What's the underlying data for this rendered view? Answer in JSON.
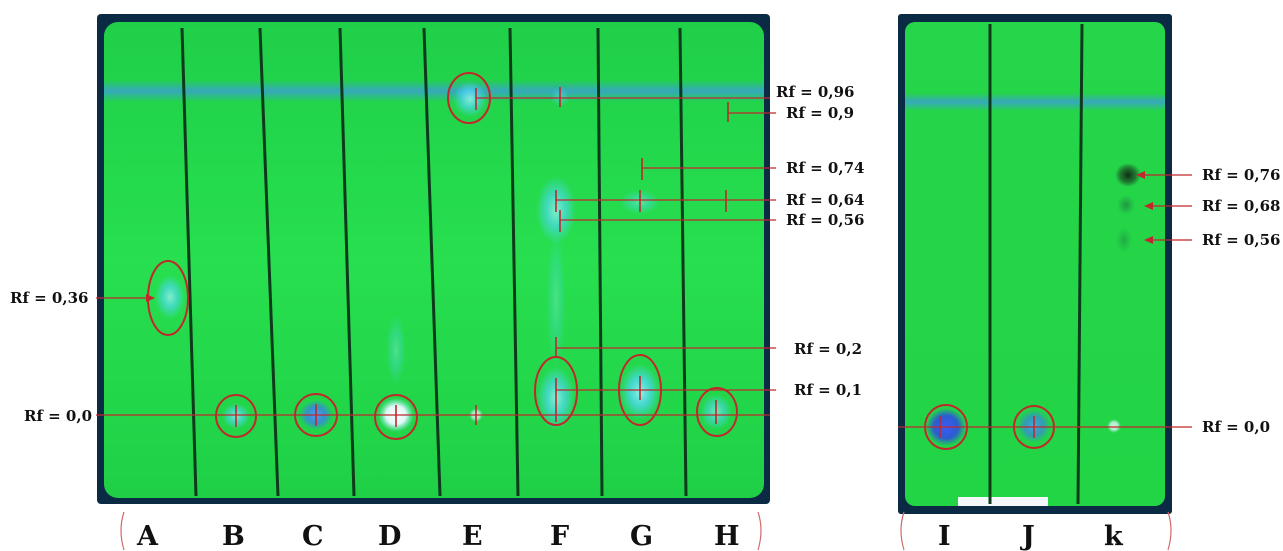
{
  "colors": {
    "plate_green": "#22d84a",
    "plate_edge": "#0b2a44",
    "divider": "#0e3a1c",
    "solvent_band": "#3aa0d0",
    "marker_red": "#c0282c",
    "fluorescent_spot": "#50d8ff",
    "quenched_spot": "#1a3a20"
  },
  "lanes": [
    "A",
    "B",
    "C",
    "D",
    "E",
    "F",
    "G",
    "H",
    "I",
    "J",
    "k"
  ],
  "rf_labels": {
    "plate1_left": [
      "Rf = 0,36",
      "Rf = 0,0"
    ],
    "plate1_right": [
      "Rf = 0,96",
      "Rf = 0,9",
      "Rf = 0,74",
      "Rf = 0,64",
      "Rf = 0,56",
      "Rf = 0,2",
      "Rf = 0,1"
    ],
    "plate2_right": [
      "Rf = 0,76",
      "Rf = 0,68",
      "Rf = 0,56",
      "Rf = 0,0"
    ]
  }
}
